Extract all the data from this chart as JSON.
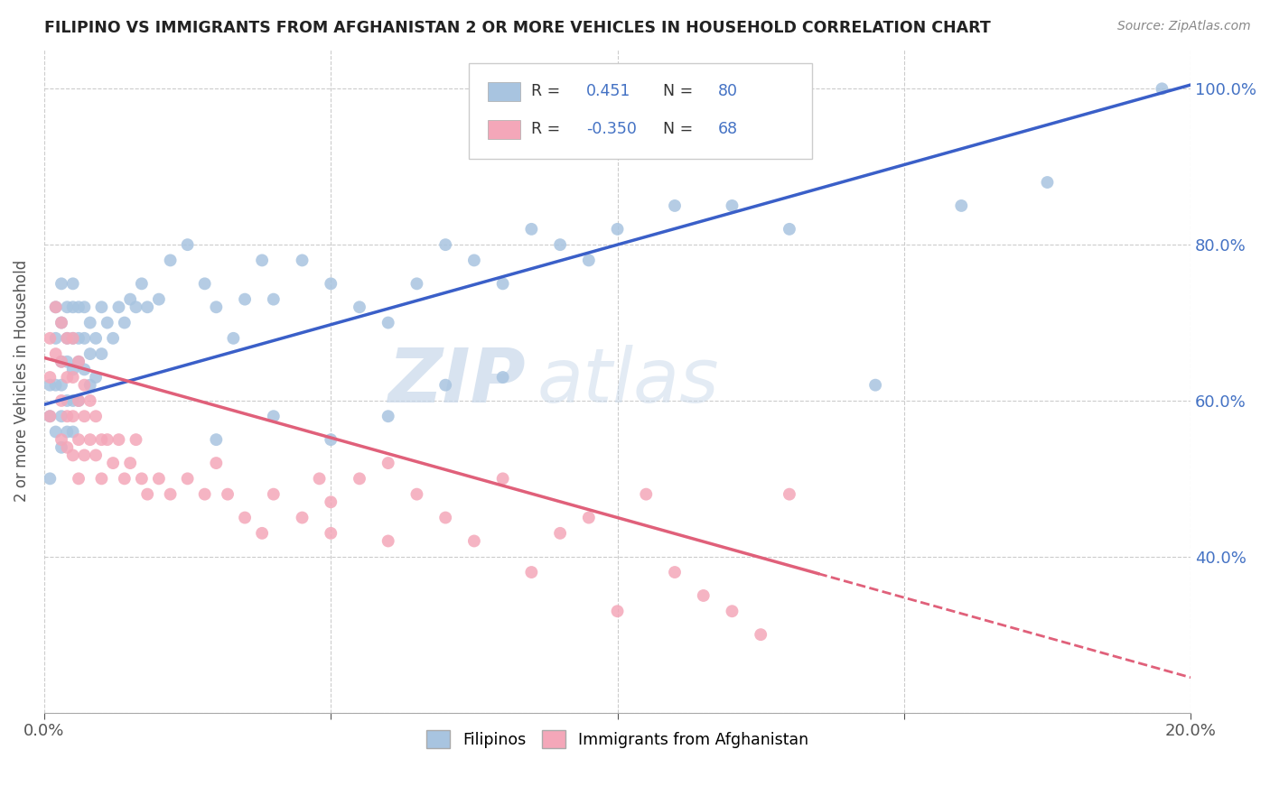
{
  "title": "FILIPINO VS IMMIGRANTS FROM AFGHANISTAN 2 OR MORE VEHICLES IN HOUSEHOLD CORRELATION CHART",
  "source": "Source: ZipAtlas.com",
  "ylabel": "2 or more Vehicles in Household",
  "xmin": 0.0,
  "xmax": 0.2,
  "ymin": 0.2,
  "ymax": 1.05,
  "x_ticks": [
    0.0,
    0.05,
    0.1,
    0.15,
    0.2
  ],
  "x_tick_labels": [
    "0.0%",
    "",
    "",
    "",
    "20.0%"
  ],
  "y_ticks": [
    0.2,
    0.4,
    0.6,
    0.8,
    1.0
  ],
  "y_tick_labels_right": [
    "",
    "40.0%",
    "60.0%",
    "80.0%",
    "100.0%"
  ],
  "filipino_color": "#a8c4e0",
  "afghan_color": "#f4a7b9",
  "trendline_filipino_color": "#3a5fc8",
  "trendline_afghan_color": "#e0607a",
  "R_filipino": 0.451,
  "N_filipino": 80,
  "R_afghan": -0.35,
  "N_afghan": 68,
  "watermark_zip": "ZIP",
  "watermark_atlas": "atlas",
  "trendline_filipino_x0": 0.0,
  "trendline_filipino_y0": 0.595,
  "trendline_filipino_x1": 0.2,
  "trendline_filipino_y1": 1.005,
  "trendline_afghan_x0": 0.0,
  "trendline_afghan_y0": 0.655,
  "trendline_afghan_x1": 0.2,
  "trendline_afghan_y1": 0.245,
  "trendline_afghan_solid_end": 0.135,
  "filipino_x": [
    0.001,
    0.001,
    0.001,
    0.002,
    0.002,
    0.002,
    0.002,
    0.003,
    0.003,
    0.003,
    0.003,
    0.003,
    0.003,
    0.004,
    0.004,
    0.004,
    0.004,
    0.004,
    0.005,
    0.005,
    0.005,
    0.005,
    0.005,
    0.005,
    0.006,
    0.006,
    0.006,
    0.006,
    0.007,
    0.007,
    0.007,
    0.008,
    0.008,
    0.008,
    0.009,
    0.009,
    0.01,
    0.01,
    0.011,
    0.012,
    0.013,
    0.014,
    0.015,
    0.016,
    0.017,
    0.018,
    0.02,
    0.022,
    0.025,
    0.028,
    0.03,
    0.033,
    0.035,
    0.038,
    0.04,
    0.045,
    0.05,
    0.055,
    0.06,
    0.065,
    0.07,
    0.075,
    0.08,
    0.085,
    0.09,
    0.095,
    0.1,
    0.11,
    0.12,
    0.13,
    0.145,
    0.16,
    0.175,
    0.03,
    0.04,
    0.05,
    0.06,
    0.07,
    0.08,
    0.195
  ],
  "filipino_y": [
    0.62,
    0.58,
    0.5,
    0.72,
    0.68,
    0.62,
    0.56,
    0.75,
    0.7,
    0.65,
    0.62,
    0.58,
    0.54,
    0.72,
    0.68,
    0.65,
    0.6,
    0.56,
    0.75,
    0.72,
    0.68,
    0.64,
    0.6,
    0.56,
    0.72,
    0.68,
    0.65,
    0.6,
    0.72,
    0.68,
    0.64,
    0.7,
    0.66,
    0.62,
    0.68,
    0.63,
    0.72,
    0.66,
    0.7,
    0.68,
    0.72,
    0.7,
    0.73,
    0.72,
    0.75,
    0.72,
    0.73,
    0.78,
    0.8,
    0.75,
    0.72,
    0.68,
    0.73,
    0.78,
    0.73,
    0.78,
    0.75,
    0.72,
    0.7,
    0.75,
    0.8,
    0.78,
    0.75,
    0.82,
    0.8,
    0.78,
    0.82,
    0.85,
    0.85,
    0.82,
    0.62,
    0.85,
    0.88,
    0.55,
    0.58,
    0.55,
    0.58,
    0.62,
    0.63,
    1.0
  ],
  "afghan_x": [
    0.001,
    0.001,
    0.001,
    0.002,
    0.002,
    0.003,
    0.003,
    0.003,
    0.003,
    0.004,
    0.004,
    0.004,
    0.004,
    0.005,
    0.005,
    0.005,
    0.005,
    0.006,
    0.006,
    0.006,
    0.006,
    0.007,
    0.007,
    0.007,
    0.008,
    0.008,
    0.009,
    0.009,
    0.01,
    0.01,
    0.011,
    0.012,
    0.013,
    0.014,
    0.015,
    0.016,
    0.017,
    0.018,
    0.02,
    0.022,
    0.025,
    0.028,
    0.03,
    0.032,
    0.035,
    0.038,
    0.04,
    0.045,
    0.048,
    0.05,
    0.055,
    0.06,
    0.065,
    0.07,
    0.075,
    0.08,
    0.085,
    0.09,
    0.095,
    0.1,
    0.105,
    0.11,
    0.115,
    0.12,
    0.125,
    0.13,
    0.05,
    0.06
  ],
  "afghan_y": [
    0.68,
    0.63,
    0.58,
    0.72,
    0.66,
    0.7,
    0.65,
    0.6,
    0.55,
    0.68,
    0.63,
    0.58,
    0.54,
    0.68,
    0.63,
    0.58,
    0.53,
    0.65,
    0.6,
    0.55,
    0.5,
    0.62,
    0.58,
    0.53,
    0.6,
    0.55,
    0.58,
    0.53,
    0.55,
    0.5,
    0.55,
    0.52,
    0.55,
    0.5,
    0.52,
    0.55,
    0.5,
    0.48,
    0.5,
    0.48,
    0.5,
    0.48,
    0.52,
    0.48,
    0.45,
    0.43,
    0.48,
    0.45,
    0.5,
    0.47,
    0.5,
    0.52,
    0.48,
    0.45,
    0.42,
    0.5,
    0.38,
    0.43,
    0.45,
    0.33,
    0.48,
    0.38,
    0.35,
    0.33,
    0.3,
    0.48,
    0.43,
    0.42
  ]
}
